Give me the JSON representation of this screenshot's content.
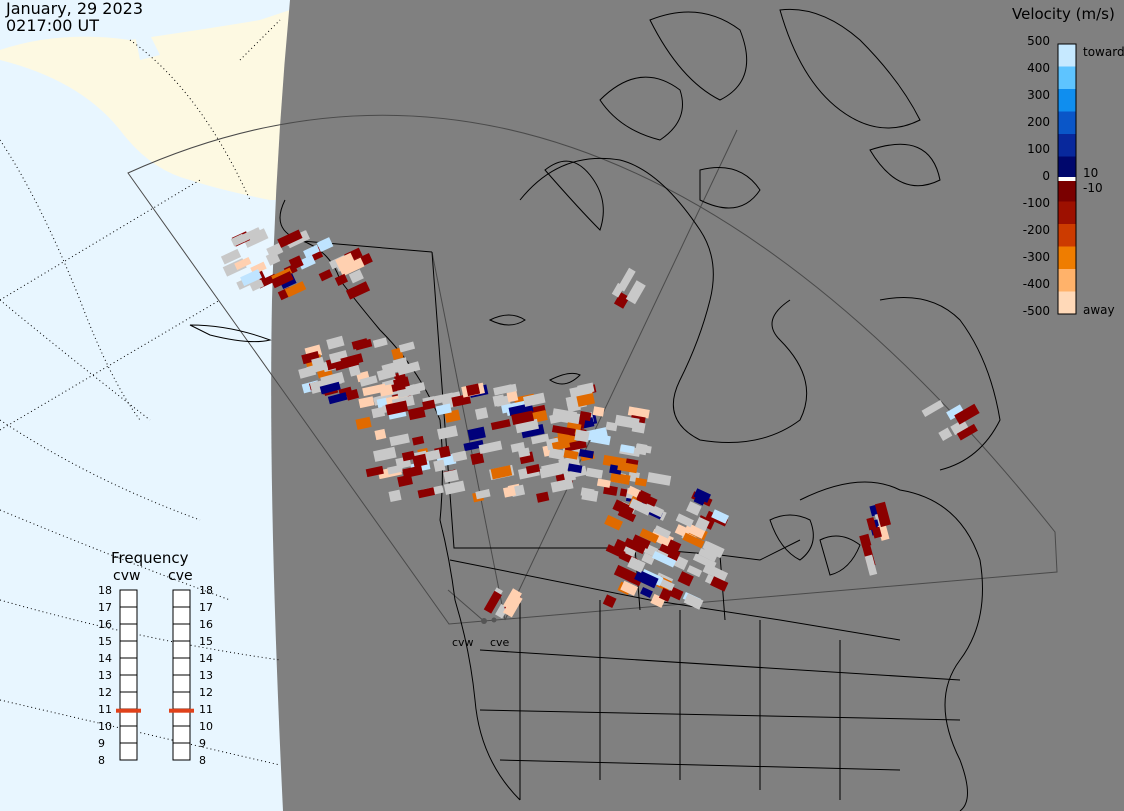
{
  "header": {
    "date": "January, 29 2023",
    "time": "0217:00 UT"
  },
  "colorbar": {
    "title": "Velocity (m/s)",
    "ticks": [
      "500",
      "400",
      "300",
      "200",
      "100",
      "0",
      "-100",
      "-200",
      "-300",
      "-400",
      "-500"
    ],
    "label_10": "10",
    "label_neg10": "-10",
    "toward_label": "toward",
    "away_label": "away",
    "colors": [
      "#c6e9ff",
      "#5ec4ff",
      "#0f8eef",
      "#0a56c8",
      "#08289c",
      "#00076c",
      "#7a0000",
      "#9d1000",
      "#cc3b00",
      "#ef7d00",
      "#ffb26a",
      "#ffd9b8"
    ]
  },
  "frequency": {
    "title": "Frequency",
    "radars": [
      {
        "name": "cvw",
        "value_mhz": 10.9
      },
      {
        "name": "cve",
        "value_mhz": 10.9
      }
    ],
    "ticks": [
      "18",
      "17",
      "16",
      "15",
      "14",
      "13",
      "12",
      "11",
      "10",
      "9",
      "8"
    ],
    "marker_color": "#e0411a"
  },
  "sites": {
    "cvw_label": "cvw",
    "cve_label": "cve"
  },
  "map": {
    "ocean_color": "#e8f6ff",
    "land_color": "#fdf9e2",
    "night_color": "#808080",
    "ground_scatter_color": "#c8c8c8"
  }
}
